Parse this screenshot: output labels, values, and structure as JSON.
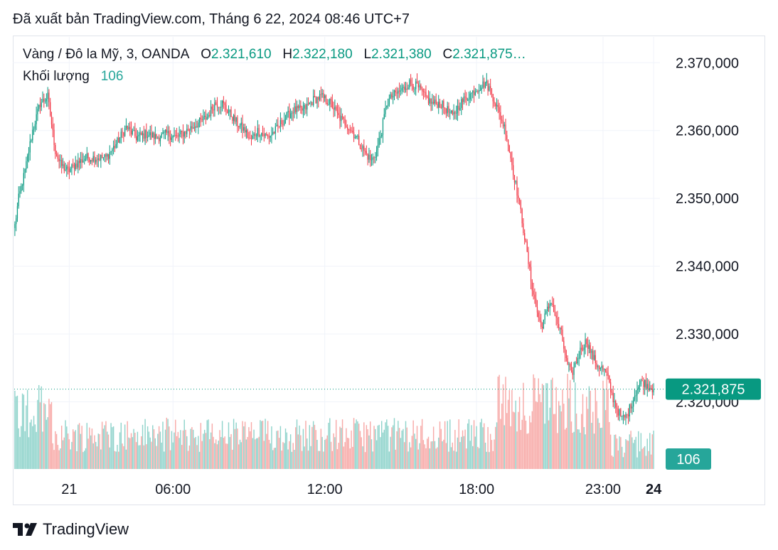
{
  "header": {
    "published": "Đã xuất bản TradingView.com, Tháng 6 22, 2024 08:46 UTC+7"
  },
  "legend": {
    "symbol": "Vàng / Đô la Mỹ, 3, OANDA",
    "o_label": "O",
    "o_value": "2.321,610",
    "h_label": "H",
    "h_value": "2.322,180",
    "l_label": "L",
    "l_value": "2.321,380",
    "c_label": "C",
    "c_value": "2.321,875…",
    "volume_label": "Khối lượng",
    "volume_value": "106"
  },
  "colors": {
    "up": "#089981",
    "down": "#f23645",
    "up_volume": "#8fd3cb",
    "down_volume": "#f7a9a7",
    "price_badge": "#089981",
    "volume_badge": "#26a69a",
    "grid": "#f0f3fa"
  },
  "brand": {
    "name": "TradingView",
    "icon": "tradingview-logo-icon"
  },
  "chart_data": {
    "type": "candlestick",
    "interval": "3",
    "symbol": "XAUUSD",
    "y_ticks": [
      "2.370,000",
      "2.360,000",
      "2.350,000",
      "2.340,000",
      "2.330,000",
      "2.320,000"
    ],
    "y_tick_values": [
      2370,
      2360,
      2350,
      2340,
      2330,
      2320
    ],
    "ylim": [
      2310.1,
      2373.8
    ],
    "x_ticks": [
      {
        "label": "21",
        "bold": false,
        "bar_index": 43
      },
      {
        "label": "06:00",
        "bold": false,
        "bar_index": 125
      },
      {
        "label": "12:00",
        "bold": false,
        "bar_index": 245
      },
      {
        "label": "18:00",
        "bold": false,
        "bar_index": 365
      },
      {
        "label": "23:00",
        "bold": false,
        "bar_index": 465
      },
      {
        "label": "24",
        "bold": true,
        "bar_index": 505
      }
    ],
    "current_price": 2321.875,
    "current_price_label": "2.321,875",
    "current_volume": 106,
    "current_volume_label": "106",
    "bar_count": 506,
    "price_path": [
      [
        0,
        2346
      ],
      [
        3,
        2350
      ],
      [
        8,
        2354
      ],
      [
        14,
        2360
      ],
      [
        20,
        2364
      ],
      [
        26,
        2365
      ],
      [
        32,
        2357
      ],
      [
        36,
        2355
      ],
      [
        42,
        2354
      ],
      [
        48,
        2355
      ],
      [
        56,
        2356
      ],
      [
        64,
        2356
      ],
      [
        72,
        2356
      ],
      [
        80,
        2358
      ],
      [
        88,
        2360.5
      ],
      [
        96,
        2359
      ],
      [
        104,
        2359.5
      ],
      [
        112,
        2359
      ],
      [
        120,
        2359.5
      ],
      [
        128,
        2359
      ],
      [
        136,
        2360
      ],
      [
        144,
        2361
      ],
      [
        152,
        2362
      ],
      [
        158,
        2364
      ],
      [
        164,
        2364
      ],
      [
        170,
        2362.5
      ],
      [
        176,
        2361
      ],
      [
        182,
        2360
      ],
      [
        186,
        2358.5
      ],
      [
        192,
        2360
      ],
      [
        200,
        2359
      ],
      [
        206,
        2360
      ],
      [
        212,
        2361.5
      ],
      [
        220,
        2363
      ],
      [
        228,
        2363
      ],
      [
        236,
        2364.5
      ],
      [
        242,
        2365
      ],
      [
        250,
        2364
      ],
      [
        256,
        2362
      ],
      [
        262,
        2361
      ],
      [
        270,
        2359
      ],
      [
        276,
        2357
      ],
      [
        282,
        2355.5
      ],
      [
        286,
        2357
      ],
      [
        290,
        2360
      ],
      [
        294,
        2364
      ],
      [
        298,
        2365
      ],
      [
        306,
        2366
      ],
      [
        312,
        2367
      ],
      [
        318,
        2366.5
      ],
      [
        324,
        2365
      ],
      [
        330,
        2364
      ],
      [
        336,
        2364
      ],
      [
        342,
        2363
      ],
      [
        346,
        2362
      ],
      [
        352,
        2364
      ],
      [
        358,
        2365
      ],
      [
        364,
        2366
      ],
      [
        368,
        2366.5
      ],
      [
        372,
        2367
      ],
      [
        376,
        2366
      ],
      [
        380,
        2364
      ],
      [
        384,
        2362
      ],
      [
        388,
        2360
      ],
      [
        392,
        2356
      ],
      [
        396,
        2352
      ],
      [
        400,
        2348
      ],
      [
        404,
        2343
      ],
      [
        408,
        2338
      ],
      [
        412,
        2334
      ],
      [
        416,
        2331
      ],
      [
        420,
        2333
      ],
      [
        424,
        2335
      ],
      [
        428,
        2332
      ],
      [
        432,
        2330
      ],
      [
        436,
        2326
      ],
      [
        440,
        2324
      ],
      [
        444,
        2326
      ],
      [
        448,
        2328
      ],
      [
        452,
        2329
      ],
      [
        456,
        2327
      ],
      [
        460,
        2325.5
      ],
      [
        464,
        2325
      ],
      [
        468,
        2324
      ],
      [
        472,
        2321
      ],
      [
        476,
        2319
      ],
      [
        480,
        2317.5
      ],
      [
        484,
        2318
      ],
      [
        488,
        2320
      ],
      [
        492,
        2322
      ],
      [
        496,
        2323
      ],
      [
        500,
        2322.5
      ],
      [
        505,
        2321.875
      ]
    ]
  }
}
